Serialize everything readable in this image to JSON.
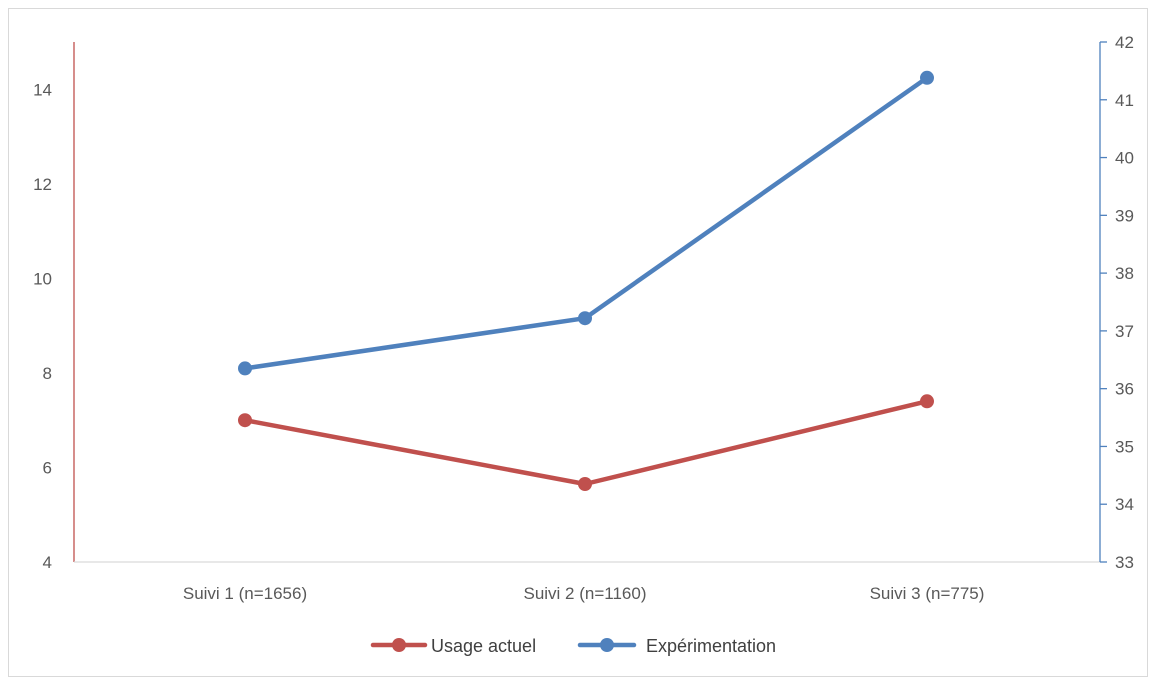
{
  "chart_data": {
    "type": "line",
    "categories": [
      "Suivi 1 (n=1656)",
      "Suivi 2 (n=1160)",
      "Suivi 3 (n=775)"
    ],
    "series": [
      {
        "name": "Usage actuel",
        "axis": "left",
        "color": "#c0504d",
        "values": [
          7.0,
          5.65,
          7.4
        ]
      },
      {
        "name": "Expérimentation",
        "axis": "right",
        "color": "#4f81bd",
        "values": [
          36.35,
          37.22,
          41.38
        ]
      }
    ],
    "y_left": {
      "ticks": [
        "4",
        "6",
        "8",
        "10",
        "12",
        "14"
      ],
      "ylim": [
        4,
        15
      ],
      "color": "#c0504d"
    },
    "y_right": {
      "ticks": [
        "33",
        "34",
        "35",
        "36",
        "37",
        "38",
        "39",
        "40",
        "41",
        "42"
      ],
      "ylim": [
        33,
        42
      ],
      "color": "#4f81bd"
    },
    "legend_position": "bottom",
    "grid": false
  }
}
